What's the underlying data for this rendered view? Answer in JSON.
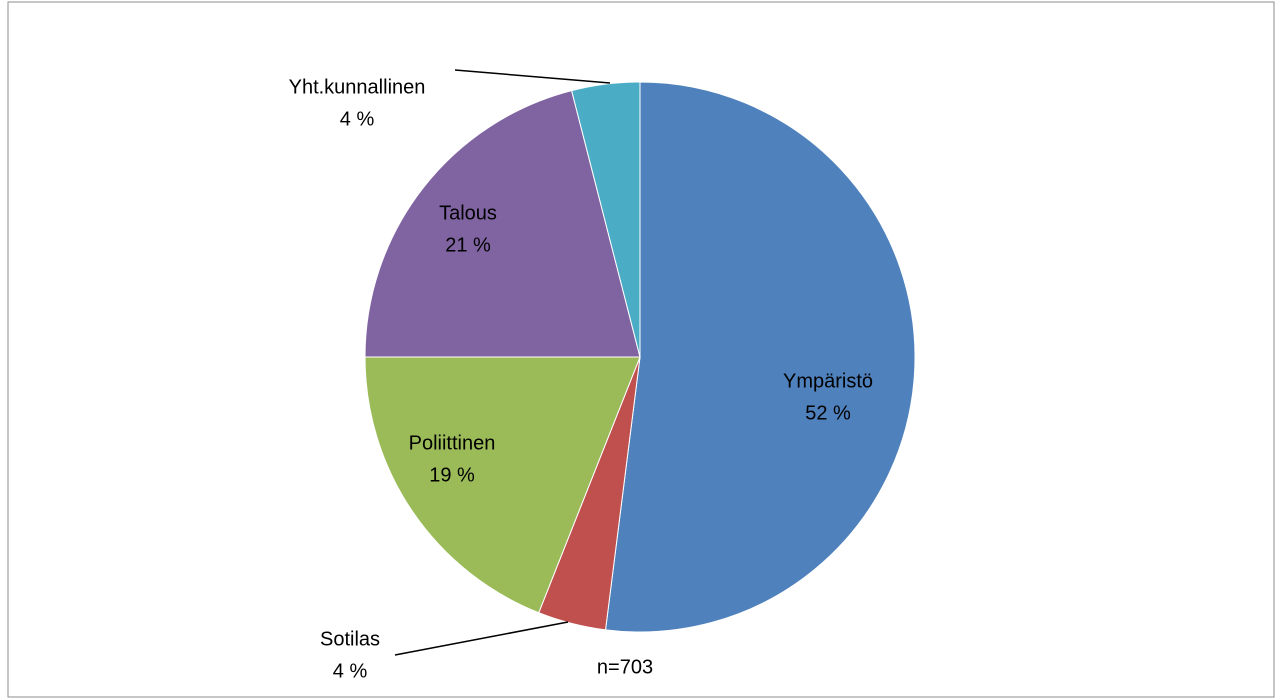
{
  "chart_data": {
    "type": "pie",
    "categories": [
      "Ympäristö",
      "Sotilas",
      "Poliittinen",
      "Talous",
      "Yht.kunnallinen"
    ],
    "values": [
      52,
      4,
      19,
      21,
      4
    ],
    "value_labels": [
      "52 %",
      "4 %",
      "19 %",
      "21 %",
      "4 %"
    ],
    "colors": [
      "#4f81bd",
      "#c0504d",
      "#9bbb59",
      "#8064a2",
      "#4bacc6"
    ],
    "annotation": "n=703"
  }
}
